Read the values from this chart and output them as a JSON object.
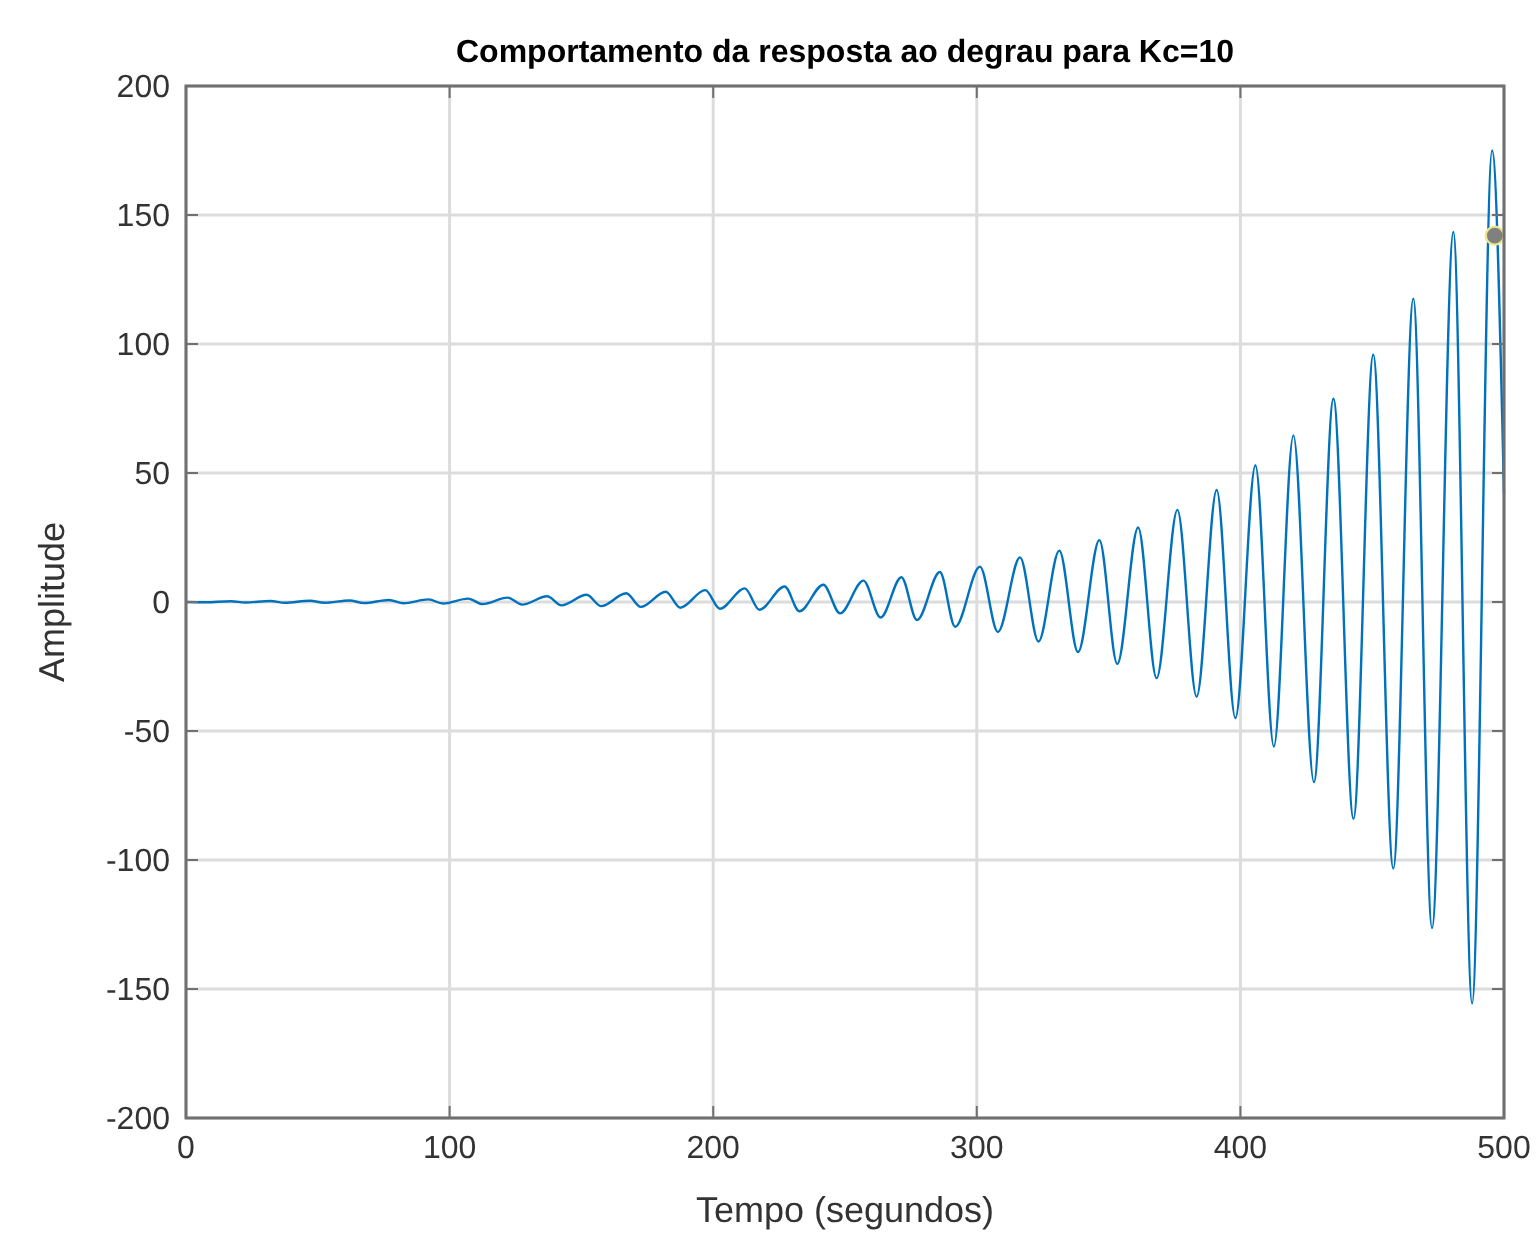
{
  "chart_data": {
    "type": "line",
    "title": "Comportamento da resposta ao degrau para Kc=10",
    "xlabel": "Tempo (segundos)",
    "ylabel": "Amplitude",
    "xlim": [
      0,
      500
    ],
    "xticks": [
      0,
      100,
      200,
      300,
      400,
      500
    ],
    "ylim": [
      -200,
      200
    ],
    "yticks": [
      -200,
      -150,
      -100,
      -50,
      0,
      50,
      100,
      150,
      200
    ],
    "grid": true,
    "line_style": "solid",
    "marker": "none",
    "series": [
      {
        "color": "#0072bd",
        "x": [
          0,
          7.5,
          17,
          22.5,
          32,
          37.5,
          47,
          52.5,
          62,
          67.5,
          77,
          82.5,
          92,
          97.5,
          107,
          112.5,
          122,
          127.5,
          137,
          142.5,
          152,
          157.5,
          167,
          172.5,
          182,
          187.5,
          197,
          202.5,
          212,
          217.5,
          227.1,
          232.7,
          241.8,
          248.1,
          257,
          263.5,
          271.4,
          277.3,
          286,
          291.8,
          301.2,
          308,
          316.4,
          323.4,
          331.3,
          338.4,
          346.5,
          353.3,
          361.2,
          368.2,
          376.1,
          383.4,
          391,
          398.1,
          405.7,
          412.7,
          420.1,
          427.9,
          435.3,
          442.9,
          450.4,
          458,
          465.6,
          472.7,
          480.8,
          487.9,
          495.5,
          500
        ],
        "values": [
          0,
          -0.1,
          0.3,
          -0.2,
          0.4,
          -0.3,
          0.5,
          -0.3,
          0.6,
          -0.4,
          0.8,
          -0.5,
          1,
          -0.6,
          1.3,
          -0.8,
          1.7,
          -1,
          2.2,
          -1.3,
          2.8,
          -1.6,
          3.4,
          -1.9,
          4,
          -2.2,
          4.6,
          -2.6,
          5.3,
          -3,
          6,
          -3.6,
          6.7,
          -4.4,
          8.3,
          -6,
          9.6,
          -7,
          11.6,
          -9.6,
          13.7,
          -11.6,
          17.3,
          -15.3,
          19.9,
          -19.4,
          24,
          -24,
          28.9,
          -29.5,
          35.7,
          -36.7,
          43.4,
          -45,
          53,
          -56,
          64.6,
          -69.8,
          78.8,
          -84,
          95.9,
          -103.3,
          117.6,
          -126.4,
          143.4,
          -155.6,
          175,
          42
        ]
      },
      {
        "type": "scatter",
        "color": "#808080",
        "marker": "circle",
        "x": [
          496.5
        ],
        "values": [
          142
        ]
      }
    ]
  }
}
